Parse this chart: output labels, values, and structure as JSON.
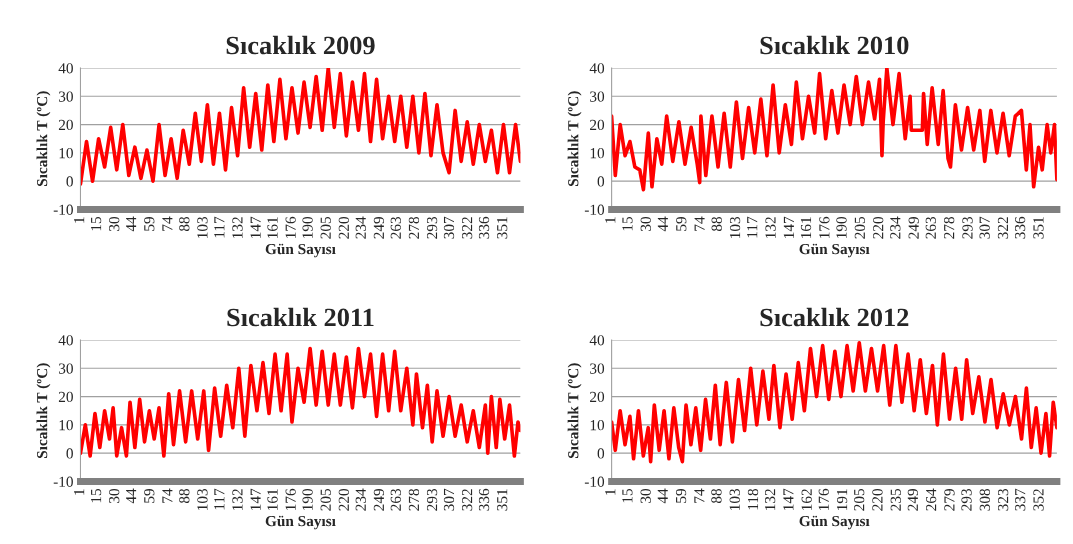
{
  "chart_data": [
    {
      "type": "line",
      "title": "Sıcaklık 2009",
      "xlabel": "Gün Sayısı",
      "ylabel": "Sıcaklık T (ºC)",
      "grid": "y",
      "ylim": [
        -10,
        40
      ],
      "yticks": [
        -10,
        0,
        10,
        20,
        30,
        40
      ],
      "xlim": [
        1,
        365
      ],
      "xticks": [
        1,
        15,
        30,
        44,
        59,
        74,
        88,
        103,
        117,
        132,
        147,
        161,
        176,
        190,
        205,
        220,
        234,
        249,
        263,
        278,
        293,
        307,
        322,
        336,
        351
      ],
      "x": [
        1,
        6,
        11,
        16,
        21,
        26,
        31,
        36,
        41,
        46,
        51,
        56,
        61,
        66,
        71,
        76,
        81,
        86,
        91,
        96,
        101,
        106,
        111,
        116,
        121,
        126,
        131,
        136,
        141,
        146,
        151,
        156,
        161,
        166,
        171,
        176,
        181,
        186,
        191,
        196,
        201,
        206,
        211,
        216,
        221,
        226,
        231,
        236,
        241,
        246,
        251,
        256,
        261,
        266,
        271,
        276,
        281,
        286,
        291,
        296,
        301,
        306,
        311,
        316,
        321,
        326,
        331,
        336,
        341,
        346,
        351,
        356,
        361,
        365
      ],
      "series": [
        {
          "color": "#ff0000",
          "values": [
            -1,
            14,
            0,
            15,
            5,
            19,
            4,
            20,
            2,
            12,
            1,
            11,
            0,
            20,
            2,
            15,
            1,
            18,
            6,
            24,
            7,
            27,
            6,
            24,
            4,
            26,
            9,
            33,
            12,
            31,
            11,
            34,
            14,
            36,
            15,
            33,
            17,
            35,
            19,
            37,
            18,
            40,
            19,
            38,
            16,
            35,
            18,
            38,
            14,
            36,
            15,
            30,
            14,
            30,
            12,
            30,
            10,
            31,
            9,
            27,
            10,
            3,
            25,
            7,
            21,
            6,
            20,
            7,
            18,
            3,
            20,
            3,
            20,
            7
          ]
        }
      ]
    },
    {
      "type": "line",
      "title": "Sıcaklık 2010",
      "xlabel": "Gün Sayısı",
      "ylabel": "Sıcaklık T (ºC)",
      "grid": "y",
      "ylim": [
        -10,
        40
      ],
      "yticks": [
        -10,
        0,
        10,
        20,
        30,
        40
      ],
      "xlim": [
        1,
        365
      ],
      "xticks": [
        1,
        15,
        30,
        44,
        59,
        74,
        88,
        103,
        117,
        132,
        147,
        161,
        176,
        190,
        205,
        220,
        234,
        249,
        263,
        278,
        293,
        307,
        322,
        336,
        351
      ],
      "x": [
        1,
        4,
        8,
        12,
        16,
        20,
        24,
        27,
        31,
        34,
        38,
        42,
        46,
        51,
        56,
        61,
        66,
        71,
        73,
        74,
        78,
        83,
        88,
        93,
        98,
        103,
        108,
        113,
        118,
        123,
        128,
        133,
        138,
        143,
        148,
        152,
        157,
        162,
        167,
        171,
        176,
        181,
        186,
        191,
        196,
        201,
        206,
        211,
        216,
        220,
        222,
        223,
        226,
        231,
        236,
        241,
        245,
        246,
        255,
        256,
        259,
        263,
        268,
        272,
        276,
        278,
        282,
        287,
        292,
        297,
        302,
        306,
        311,
        316,
        321,
        326,
        331,
        336,
        340,
        343,
        346,
        350,
        353,
        357,
        360,
        363,
        365
      ],
      "series": [
        {
          "color": "#ff0000",
          "values": [
            23,
            2,
            20,
            9,
            14,
            5,
            4,
            -3,
            17,
            -2,
            15,
            6,
            23,
            7,
            21,
            6,
            19,
            6,
            -0.5,
            23,
            2,
            23,
            5,
            24,
            5,
            28,
            8,
            26,
            10,
            29,
            9,
            34,
            10,
            27,
            13,
            35,
            15,
            30,
            17,
            38,
            15,
            32,
            17,
            34,
            20,
            37,
            20,
            35,
            22,
            36,
            9,
            21,
            40,
            20,
            38,
            15,
            30,
            18,
            18,
            31,
            13,
            33,
            13,
            32,
            8,
            5,
            27,
            11,
            26,
            11,
            25,
            7,
            25,
            10,
            24,
            9,
            23,
            25,
            4,
            20,
            -2,
            12,
            4,
            20,
            10,
            20,
            0.5
          ]
        }
      ]
    },
    {
      "type": "line",
      "title": "Sıcaklık 2011",
      "xlabel": "Gün Sayısı",
      "ylabel": "Sıcaklık T (ºC)",
      "grid": "y",
      "ylim": [
        -10,
        40
      ],
      "yticks": [
        -10,
        0,
        10,
        20,
        30,
        40
      ],
      "xlim": [
        1,
        365
      ],
      "xticks": [
        1,
        15,
        30,
        44,
        59,
        74,
        88,
        103,
        117,
        132,
        147,
        161,
        176,
        190,
        205,
        220,
        234,
        249,
        263,
        278,
        293,
        307,
        322,
        336,
        351
      ],
      "x": [
        1,
        5,
        9,
        13,
        17,
        21,
        25,
        28,
        31,
        35,
        39,
        42,
        46,
        50,
        54,
        58,
        62,
        66,
        70,
        74,
        78,
        83,
        88,
        93,
        98,
        103,
        107,
        112,
        117,
        122,
        127,
        132,
        137,
        142,
        147,
        152,
        157,
        162,
        167,
        172,
        176,
        181,
        186,
        191,
        196,
        201,
        206,
        211,
        216,
        221,
        226,
        231,
        236,
        241,
        246,
        251,
        256,
        261,
        266,
        271,
        276,
        279,
        284,
        288,
        292,
        296,
        301,
        306,
        311,
        316,
        321,
        326,
        331,
        336,
        338,
        341,
        345,
        348,
        352,
        356,
        360,
        363,
        365
      ],
      "series": [
        {
          "color": "#ff0000",
          "values": [
            0,
            10,
            -1,
            14,
            2,
            15,
            5,
            16,
            -1,
            9,
            -1,
            18,
            2,
            19,
            4,
            15,
            5,
            16,
            -1,
            21,
            3,
            22,
            4,
            22,
            5,
            22,
            1,
            23,
            6,
            24,
            9,
            30,
            6,
            31,
            15,
            32,
            14,
            35,
            15,
            35,
            11,
            30,
            18,
            37,
            17,
            36,
            17,
            35,
            17,
            34,
            16,
            37,
            20,
            35,
            13,
            35,
            15,
            36,
            15,
            30,
            10,
            28,
            9,
            24,
            4,
            22,
            6,
            20,
            6,
            17,
            4,
            15,
            2,
            17,
            0,
            20,
            2,
            19,
            5,
            17,
            -1,
            11,
            8
          ]
        }
      ]
    },
    {
      "type": "line",
      "title": "Sıcaklık 2012",
      "xlabel": "Gün Sayısı",
      "ylabel": "Sıcaklık T (ºC)",
      "grid": "y",
      "ylim": [
        -10,
        40
      ],
      "yticks": [
        -10,
        0,
        10,
        20,
        30,
        40
      ],
      "xlim": [
        1,
        366
      ],
      "xticks": [
        1,
        15,
        30,
        44,
        59,
        74,
        88,
        103,
        118,
        132,
        147,
        162,
        176,
        191,
        205,
        220,
        235,
        249,
        264,
        279,
        293,
        308,
        323,
        337,
        352
      ],
      "x": [
        1,
        4,
        8,
        12,
        16,
        19,
        23,
        27,
        31,
        33,
        36,
        40,
        44,
        48,
        52,
        56,
        59,
        62,
        66,
        70,
        74,
        78,
        82,
        86,
        90,
        95,
        100,
        105,
        110,
        115,
        120,
        125,
        130,
        134,
        139,
        144,
        149,
        154,
        159,
        164,
        169,
        174,
        179,
        184,
        189,
        194,
        199,
        204,
        209,
        214,
        219,
        224,
        229,
        234,
        239,
        244,
        249,
        254,
        259,
        264,
        268,
        273,
        278,
        283,
        288,
        292,
        297,
        302,
        307,
        312,
        317,
        322,
        327,
        332,
        337,
        341,
        345,
        349,
        353,
        357,
        360,
        363,
        366
      ],
      "series": [
        {
          "color": "#ff0000",
          "values": [
            11,
            1,
            15,
            3,
            13,
            -2,
            15,
            -1,
            9,
            -3,
            17,
            1,
            15,
            -2,
            16,
            2,
            -3,
            17,
            3,
            16,
            1,
            19,
            5,
            24,
            3,
            25,
            4,
            26,
            8,
            30,
            10,
            29,
            12,
            31,
            9,
            28,
            12,
            32,
            15,
            37,
            20,
            38,
            19,
            36,
            20,
            38,
            22,
            39,
            22,
            37,
            22,
            38,
            17,
            38,
            18,
            35,
            15,
            33,
            14,
            31,
            10,
            35,
            12,
            30,
            12,
            33,
            14,
            27,
            11,
            26,
            9,
            21,
            10,
            20,
            5,
            23,
            2,
            16,
            0,
            14,
            -1,
            18,
            9
          ]
        }
      ]
    }
  ]
}
